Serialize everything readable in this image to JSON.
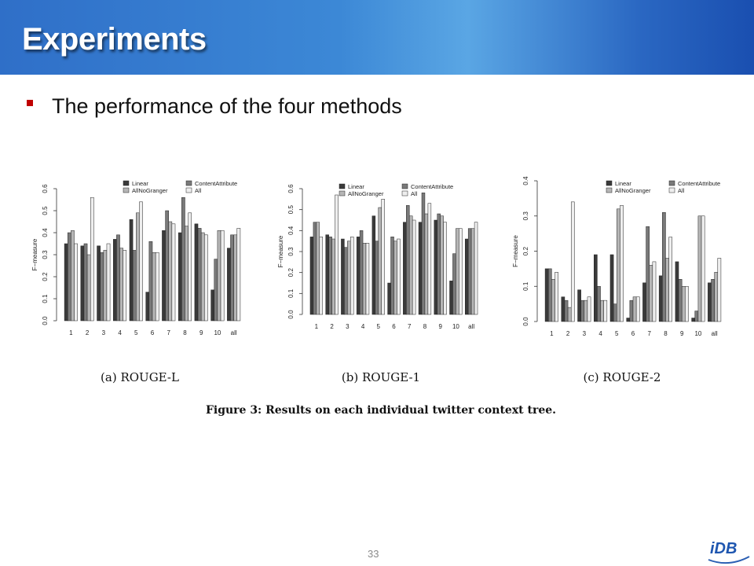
{
  "slide": {
    "title": "Experiments",
    "bullet": "The performance of the four methods",
    "page_number": "33"
  },
  "figure_caption": "Figure 3: Results on each individual twitter context tree.",
  "colors": {
    "header_blue": "#2f6fc8",
    "bullet_red": "#c00000",
    "linear": "#3a3a3a",
    "content_attribute": "#7a7a7a",
    "all_no_granger": "#b6b6b6",
    "all": "#eeeeee"
  },
  "chart_data": [
    {
      "type": "bar",
      "caption": "(a) ROUGE-L",
      "ylabel": "F−measure",
      "ylim": [
        0,
        0.6
      ],
      "yticks": [
        "0.0",
        "0.1",
        "0.2",
        "0.3",
        "0.4",
        "0.5",
        "0.6"
      ],
      "legend_position": "top-right",
      "categories": [
        "1",
        "2",
        "3",
        "4",
        "5",
        "6",
        "7",
        "8",
        "9",
        "10",
        "all"
      ],
      "series": [
        {
          "name": "Linear",
          "values": [
            0.35,
            0.34,
            0.34,
            0.37,
            0.46,
            0.13,
            0.41,
            0.4,
            0.44,
            0.14,
            0.33
          ]
        },
        {
          "name": "ContentAttribute",
          "values": [
            0.4,
            0.35,
            0.31,
            0.39,
            0.32,
            0.36,
            0.5,
            0.56,
            0.42,
            0.28,
            0.39
          ]
        },
        {
          "name": "AllNoGranger",
          "values": [
            0.41,
            0.3,
            0.32,
            0.33,
            0.49,
            0.31,
            0.45,
            0.43,
            0.4,
            0.41,
            0.39
          ]
        },
        {
          "name": "All",
          "values": [
            0.35,
            0.56,
            0.35,
            0.32,
            0.54,
            0.31,
            0.44,
            0.49,
            0.39,
            0.41,
            0.42
          ]
        }
      ]
    },
    {
      "type": "bar",
      "caption": "(b) ROUGE-1",
      "ylabel": "F−measure",
      "ylim": [
        0,
        0.6
      ],
      "yticks": [
        "0.0",
        "0.1",
        "0.2",
        "0.3",
        "0.4",
        "0.5",
        "0.6"
      ],
      "legend_position": "top-right",
      "categories": [
        "1",
        "2",
        "3",
        "4",
        "5",
        "6",
        "7",
        "8",
        "9",
        "10",
        "all"
      ],
      "series": [
        {
          "name": "Linear",
          "values": [
            0.37,
            0.38,
            0.36,
            0.37,
            0.47,
            0.15,
            0.44,
            0.44,
            0.45,
            0.16,
            0.36
          ]
        },
        {
          "name": "ContentAttribute",
          "values": [
            0.44,
            0.37,
            0.32,
            0.4,
            0.35,
            0.37,
            0.52,
            0.58,
            0.48,
            0.29,
            0.41
          ]
        },
        {
          "name": "AllNoGranger",
          "values": [
            0.44,
            0.36,
            0.35,
            0.34,
            0.51,
            0.35,
            0.47,
            0.48,
            0.47,
            0.41,
            0.41
          ]
        },
        {
          "name": "All",
          "values": [
            0.37,
            0.57,
            0.37,
            0.34,
            0.55,
            0.36,
            0.45,
            0.53,
            0.44,
            0.41,
            0.44
          ]
        }
      ]
    },
    {
      "type": "bar",
      "caption": "(c) ROUGE-2",
      "ylabel": "F−measure",
      "ylim": [
        0,
        0.4
      ],
      "yticks": [
        "0.0",
        "0.1",
        "0.2",
        "0.3",
        "0.4"
      ],
      "legend_position": "top-right",
      "categories": [
        "1",
        "2",
        "3",
        "4",
        "5",
        "6",
        "7",
        "8",
        "9",
        "10",
        "all"
      ],
      "series": [
        {
          "name": "Linear",
          "values": [
            0.15,
            0.07,
            0.09,
            0.19,
            0.19,
            0.01,
            0.11,
            0.13,
            0.17,
            0.01,
            0.11
          ]
        },
        {
          "name": "ContentAttribute",
          "values": [
            0.15,
            0.06,
            0.06,
            0.1,
            0.05,
            0.06,
            0.27,
            0.31,
            0.12,
            0.03,
            0.12
          ]
        },
        {
          "name": "AllNoGranger",
          "values": [
            0.12,
            0.04,
            0.06,
            0.06,
            0.32,
            0.07,
            0.16,
            0.18,
            0.1,
            0.3,
            0.14
          ]
        },
        {
          "name": "All",
          "values": [
            0.14,
            0.34,
            0.07,
            0.06,
            0.33,
            0.07,
            0.17,
            0.24,
            0.1,
            0.3,
            0.18
          ]
        }
      ]
    }
  ]
}
